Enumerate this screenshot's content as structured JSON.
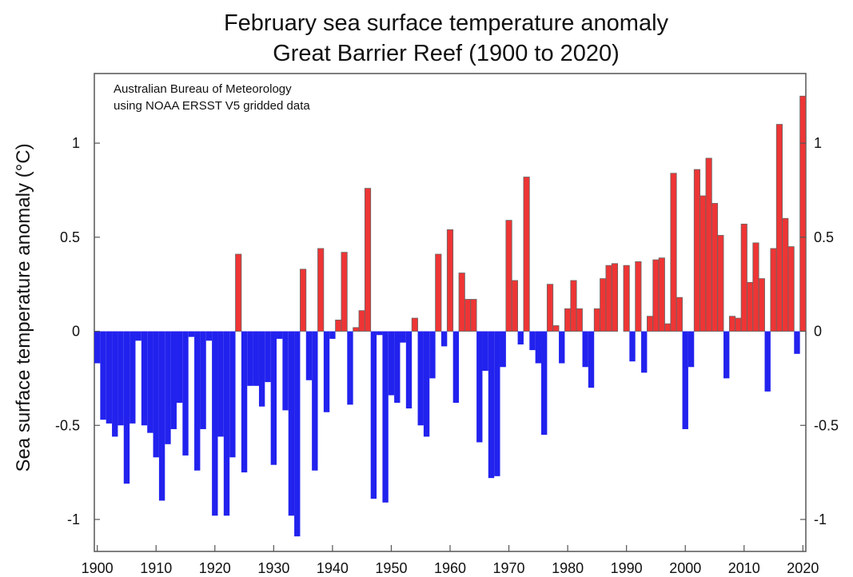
{
  "chart_data": {
    "type": "bar",
    "title": "February sea surface temperature anomaly",
    "subtitle": "Great Barrier Reef (1900 to 2020)",
    "annotation": [
      "Australian Bureau of Meteorology",
      "using NOAA ERSST V5 gridded data"
    ],
    "xlabel": "",
    "ylabel": "Sea surface temperature anomaly (°C)",
    "xlim": [
      1900,
      2020
    ],
    "ylim": [
      -1.17,
      1.37
    ],
    "x_ticks": [
      1900,
      1910,
      1920,
      1930,
      1940,
      1950,
      1960,
      1970,
      1980,
      1990,
      2000,
      2010,
      2020
    ],
    "y_ticks": [
      -1,
      -0.5,
      0,
      0.5,
      1
    ],
    "y_tick_labels": [
      "-1",
      "-0.5",
      "0",
      "0.5",
      "1"
    ],
    "right_axis_tick_labels": [
      "-1",
      "-0.5",
      "0",
      "0.5",
      "1"
    ],
    "grid": false,
    "legend": "none",
    "colors": {
      "positive": "#ee3535",
      "negative": "#2222ee",
      "outline": "#666666",
      "axis": "#555555"
    },
    "years": [
      1900,
      1901,
      1902,
      1903,
      1904,
      1905,
      1906,
      1907,
      1908,
      1909,
      1910,
      1911,
      1912,
      1913,
      1914,
      1915,
      1916,
      1917,
      1918,
      1919,
      1920,
      1921,
      1922,
      1923,
      1924,
      1925,
      1926,
      1927,
      1928,
      1929,
      1930,
      1931,
      1932,
      1933,
      1934,
      1935,
      1936,
      1937,
      1938,
      1939,
      1940,
      1941,
      1942,
      1943,
      1944,
      1945,
      1946,
      1947,
      1948,
      1949,
      1950,
      1951,
      1952,
      1953,
      1954,
      1955,
      1956,
      1957,
      1958,
      1959,
      1960,
      1961,
      1962,
      1963,
      1964,
      1965,
      1966,
      1967,
      1968,
      1969,
      1970,
      1971,
      1972,
      1973,
      1974,
      1975,
      1976,
      1977,
      1978,
      1979,
      1980,
      1981,
      1982,
      1983,
      1984,
      1985,
      1986,
      1987,
      1988,
      1989,
      1990,
      1991,
      1992,
      1993,
      1994,
      1995,
      1996,
      1997,
      1998,
      1999,
      2000,
      2001,
      2002,
      2003,
      2004,
      2005,
      2006,
      2007,
      2008,
      2009,
      2010,
      2011,
      2012,
      2013,
      2014,
      2015,
      2016,
      2017,
      2018,
      2019,
      2020
    ],
    "values": [
      -0.17,
      -0.47,
      -0.49,
      -0.56,
      -0.5,
      -0.81,
      -0.49,
      -0.05,
      -0.5,
      -0.54,
      -0.67,
      -0.9,
      -0.6,
      -0.52,
      -0.38,
      -0.66,
      -0.03,
      -0.74,
      -0.52,
      -0.05,
      -0.98,
      -0.56,
      -0.98,
      -0.67,
      0.41,
      -0.75,
      -0.29,
      -0.29,
      -0.4,
      -0.27,
      -0.71,
      -0.04,
      -0.42,
      -0.98,
      -1.09,
      0.33,
      -0.26,
      -0.74,
      0.44,
      -0.43,
      -0.04,
      0.06,
      0.42,
      -0.39,
      0.02,
      0.11,
      0.76,
      -0.89,
      -0.02,
      -0.91,
      -0.34,
      -0.38,
      -0.06,
      -0.41,
      0.07,
      -0.5,
      -0.56,
      -0.25,
      0.41,
      -0.08,
      0.54,
      -0.38,
      0.31,
      0.17,
      0.17,
      -0.59,
      -0.21,
      -0.78,
      -0.77,
      -0.19,
      0.59,
      0.27,
      -0.07,
      0.82,
      -0.1,
      -0.17,
      -0.55,
      0.25,
      0.03,
      -0.17,
      0.12,
      0.27,
      0.12,
      -0.19,
      -0.3,
      0.12,
      0.28,
      0.35,
      0.36,
      0.0,
      0.35,
      -0.16,
      0.37,
      -0.22,
      0.08,
      0.38,
      0.39,
      0.04,
      0.84,
      0.18,
      -0.52,
      -0.19,
      0.86,
      0.72,
      0.92,
      0.68,
      0.51,
      -0.25,
      0.08,
      0.07,
      0.57,
      0.26,
      0.47,
      0.28,
      -0.32,
      0.44,
      1.1,
      0.6,
      0.45,
      -0.12,
      1.25
    ]
  }
}
